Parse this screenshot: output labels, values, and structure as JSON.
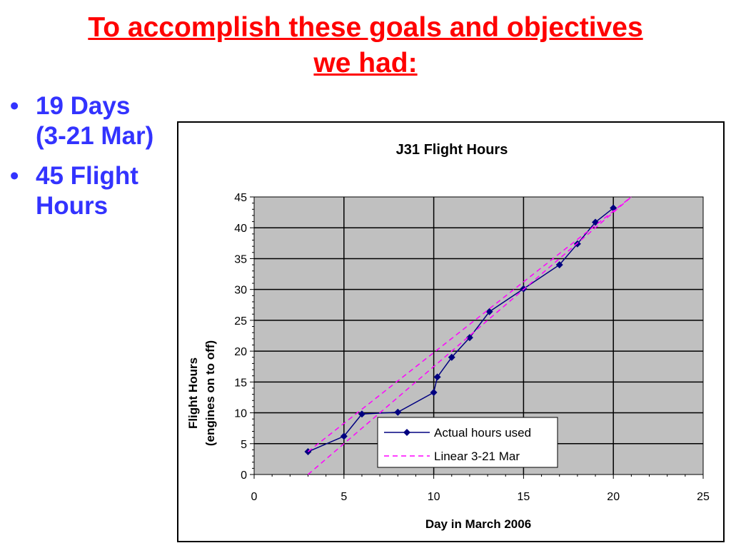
{
  "slide": {
    "title_line1": "To accomplish these goals and objectives",
    "title_line2": "we had:",
    "bullets": [
      {
        "line1": "19 Days",
        "line2": "(3-21 Mar)"
      },
      {
        "line1": "45 Flight",
        "line2": "Hours"
      }
    ]
  },
  "colors": {
    "title": "#ff0000",
    "bullets": "#3333ff",
    "plot_area": "#c0c0c0",
    "actual_series": "#000080",
    "linear_series": "#ff00ff"
  },
  "chart_data": {
    "type": "line",
    "title": "J31 Flight Hours",
    "xlabel": "Day in March 2006",
    "ylabel_line1": "Flight Hours",
    "ylabel_line2": "(engines on to off)",
    "xlim": [
      0,
      25
    ],
    "ylim": [
      0,
      45
    ],
    "x_ticks": [
      0,
      5,
      10,
      15,
      20,
      25
    ],
    "y_ticks": [
      0,
      5,
      10,
      15,
      20,
      25,
      30,
      35,
      40,
      45
    ],
    "grid": true,
    "legend_position": "bottom-center",
    "series": [
      {
        "name": "Actual hours used",
        "style": "line-diamond-markers",
        "points": [
          [
            3,
            3.7
          ],
          [
            5,
            6.2
          ],
          [
            6,
            9.8
          ],
          [
            8,
            10.1
          ],
          [
            10,
            13.3
          ],
          [
            10.2,
            15.8
          ],
          [
            11,
            19.0
          ],
          [
            12,
            22.2
          ],
          [
            13.1,
            26.4
          ],
          [
            15,
            30.1
          ],
          [
            17,
            34.0
          ],
          [
            18,
            37.4
          ],
          [
            19,
            40.9
          ],
          [
            20,
            43.2
          ]
        ]
      },
      {
        "name": "Linear 3-21 Mar",
        "style": "dashed",
        "points": [
          [
            3,
            3.7
          ],
          [
            21,
            45
          ]
        ]
      },
      {
        "name": "",
        "style": "dashed",
        "points": [
          [
            3,
            0
          ],
          [
            21,
            45
          ]
        ]
      }
    ]
  }
}
